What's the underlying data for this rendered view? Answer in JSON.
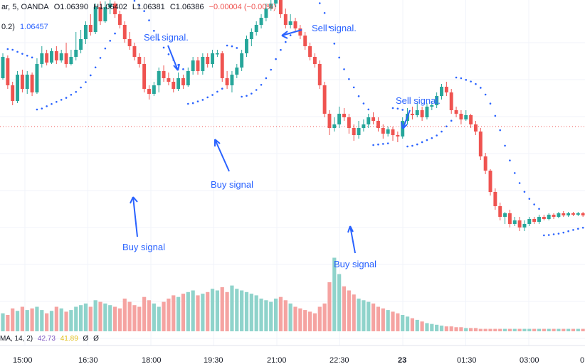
{
  "header": {
    "symbol_fragment": "ar, 5, OANDA",
    "open": "O1.06390",
    "high": "H1.06402",
    "low": "L1.06381",
    "close": "C1.06386",
    "change": "−0.00004 (−0.00%)",
    "change_color": "#ef5350"
  },
  "indicator": {
    "label": "0.2)",
    "value": "1.06457",
    "value_color": "#2962ff"
  },
  "annotations": [
    {
      "id": "sell-1",
      "text": "Sell signal."
    },
    {
      "id": "sell-2",
      "text": "Sell signal."
    },
    {
      "id": "sell-3",
      "text": "Sell signal."
    },
    {
      "id": "buy-1",
      "text": "Buy signal"
    },
    {
      "id": "buy-2",
      "text": "Buy signal"
    },
    {
      "id": "buy-3",
      "text": "Buy signal"
    }
  ],
  "time_axis": [
    "15:00",
    "16:30",
    "18:00",
    "19:30",
    "21:00",
    "22:30",
    "23",
    "01:30",
    "03:00",
    "0"
  ],
  "oscillator": {
    "label": "MA, 14, 2)",
    "value1": "42.73",
    "value1_color": "#7e57c2",
    "value2": "41.89",
    "value2_color": "#f5d322",
    "v3": "Ø",
    "v4": "Ø"
  },
  "colors": {
    "up": "#26a69a",
    "down": "#ef5350",
    "vol_up": "#8fd3cb",
    "vol_down": "#f5a3a1",
    "sar": "#2962ff",
    "grid": "#f0f3fa",
    "price_line": "#ef5350"
  },
  "chart_data": {
    "type": "candlestick",
    "candles_ohlc": [
      [
        150,
        180,
        148,
        185
      ],
      [
        178,
        140,
        135,
        182
      ],
      [
        140,
        118,
        112,
        145
      ],
      [
        118,
        155,
        115,
        160
      ],
      [
        155,
        135,
        130,
        162
      ],
      [
        135,
        155,
        128,
        160
      ],
      [
        155,
        130,
        125,
        158
      ],
      [
        130,
        170,
        128,
        178
      ],
      [
        170,
        185,
        165,
        195
      ],
      [
        185,
        172,
        168,
        190
      ],
      [
        172,
        188,
        170,
        192
      ],
      [
        188,
        175,
        170,
        195
      ],
      [
        175,
        185,
        172,
        190
      ],
      [
        185,
        170,
        165,
        200
      ],
      [
        170,
        180,
        168,
        190
      ],
      [
        180,
        190,
        175,
        215
      ],
      [
        190,
        205,
        185,
        218
      ],
      [
        205,
        225,
        198,
        230
      ],
      [
        225,
        215,
        210,
        240
      ],
      [
        215,
        250,
        212,
        255
      ],
      [
        250,
        230,
        225,
        258
      ],
      [
        230,
        250,
        228,
        258
      ],
      [
        250,
        255,
        240,
        260
      ],
      [
        255,
        240,
        235,
        258
      ],
      [
        240,
        225,
        220,
        245
      ],
      [
        225,
        205,
        200,
        230
      ],
      [
        205,
        195,
        190,
        215
      ],
      [
        195,
        180,
        175,
        200
      ],
      [
        180,
        170,
        165,
        185
      ],
      [
        170,
        135,
        130,
        180
      ],
      [
        135,
        128,
        120,
        140
      ],
      [
        128,
        140,
        125,
        145
      ],
      [
        140,
        160,
        130,
        165
      ],
      [
        160,
        150,
        145,
        168
      ],
      [
        150,
        145,
        140,
        158
      ],
      [
        145,
        135,
        130,
        150
      ],
      [
        135,
        150,
        132,
        158
      ],
      [
        150,
        140,
        135,
        155
      ],
      [
        140,
        160,
        138,
        165
      ],
      [
        160,
        175,
        155,
        180
      ],
      [
        175,
        160,
        155,
        180
      ],
      [
        160,
        180,
        155,
        185
      ],
      [
        180,
        170,
        165,
        185
      ],
      [
        170,
        185,
        165,
        190
      ],
      [
        185,
        185,
        180,
        190
      ],
      [
        185,
        150,
        145,
        188
      ],
      [
        150,
        140,
        135,
        160
      ],
      [
        140,
        155,
        130,
        160
      ],
      [
        155,
        165,
        150,
        170
      ],
      [
        165,
        185,
        160,
        190
      ],
      [
        185,
        205,
        180,
        210
      ],
      [
        205,
        215,
        195,
        220
      ],
      [
        215,
        225,
        210,
        230
      ],
      [
        225,
        235,
        220,
        240
      ],
      [
        235,
        248,
        230,
        255
      ],
      [
        248,
        255,
        245,
        275
      ],
      [
        255,
        260,
        250,
        262
      ],
      [
        260,
        240,
        235,
        265
      ],
      [
        240,
        225,
        220,
        248
      ],
      [
        225,
        230,
        220,
        240
      ],
      [
        230,
        220,
        215,
        235
      ],
      [
        220,
        210,
        205,
        225
      ],
      [
        210,
        195,
        190,
        215
      ],
      [
        195,
        180,
        175,
        200
      ],
      [
        180,
        170,
        165,
        185
      ],
      [
        170,
        140,
        135,
        175
      ],
      [
        140,
        100,
        95,
        145
      ],
      [
        100,
        80,
        70,
        105
      ],
      [
        80,
        85,
        75,
        95
      ],
      [
        85,
        100,
        80,
        110
      ],
      [
        100,
        95,
        90,
        108
      ],
      [
        95,
        80,
        72,
        100
      ],
      [
        80,
        70,
        62,
        85
      ],
      [
        70,
        80,
        65,
        90
      ],
      [
        80,
        85,
        75,
        92
      ],
      [
        85,
        95,
        80,
        100
      ],
      [
        95,
        90,
        85,
        102
      ],
      [
        90,
        80,
        75,
        95
      ],
      [
        80,
        72,
        65,
        85
      ],
      [
        72,
        78,
        68,
        82
      ],
      [
        78,
        70,
        62,
        82
      ],
      [
        70,
        68,
        60,
        75
      ],
      [
        68,
        90,
        65,
        95
      ],
      [
        90,
        100,
        85,
        108
      ],
      [
        100,
        98,
        92,
        110
      ],
      [
        98,
        105,
        95,
        115
      ],
      [
        105,
        95,
        90,
        110
      ],
      [
        95,
        110,
        92,
        115
      ],
      [
        110,
        112,
        105,
        118
      ],
      [
        112,
        125,
        108,
        130
      ],
      [
        125,
        138,
        120,
        142
      ],
      [
        138,
        130,
        125,
        145
      ],
      [
        130,
        105,
        100,
        135
      ],
      [
        105,
        100,
        95,
        110
      ],
      [
        100,
        92,
        85,
        105
      ],
      [
        92,
        98,
        90,
        105
      ],
      [
        98,
        85,
        80,
        100
      ],
      [
        85,
        75,
        70,
        90
      ],
      [
        75,
        40,
        35,
        80
      ],
      [
        40,
        20,
        15,
        45
      ],
      [
        20,
        -10,
        -15,
        22
      ],
      [
        -10,
        -30,
        -35,
        -5
      ],
      [
        -30,
        -45,
        -50,
        -25
      ],
      [
        -45,
        -40,
        -55,
        -38
      ],
      [
        -40,
        -55,
        -60,
        -35
      ],
      [
        -55,
        -50,
        -58,
        -45
      ],
      [
        -50,
        -60,
        -65,
        -45
      ],
      [
        -60,
        -55,
        -65,
        -50
      ],
      [
        -55,
        -48,
        -58,
        -45
      ],
      [
        -48,
        -52,
        -55,
        -45
      ],
      [
        -52,
        -45,
        -55,
        -42
      ],
      [
        -45,
        -48,
        -50,
        -42
      ],
      [
        -48,
        -42,
        -50,
        -40
      ],
      [
        -42,
        -45,
        -48,
        -40
      ],
      [
        -45,
        -40,
        -47,
        -38
      ],
      [
        -40,
        -43,
        -45,
        -37
      ],
      [
        -43,
        -40,
        -45,
        -38
      ],
      [
        -40,
        -42,
        -44,
        -38
      ],
      [
        -42,
        -40,
        -44,
        -38
      ],
      [
        -40,
        -43,
        -45,
        -38
      ]
    ],
    "volume": [
      22,
      20,
      28,
      25,
      30,
      26,
      28,
      30,
      26,
      22,
      25,
      30,
      28,
      24,
      26,
      30,
      32,
      34,
      30,
      38,
      36,
      34,
      32,
      30,
      28,
      40,
      36,
      32,
      30,
      42,
      38,
      34,
      30,
      36,
      40,
      44,
      42,
      46,
      48,
      50,
      44,
      46,
      48,
      52,
      50,
      54,
      48,
      56,
      52,
      50,
      48,
      46,
      44,
      40,
      38,
      36,
      40,
      42,
      38,
      34,
      30,
      28,
      26,
      24,
      22,
      30,
      34,
      60,
      90,
      70,
      55,
      50,
      45,
      40,
      38,
      36,
      34,
      30,
      28,
      26,
      24,
      22,
      20,
      18,
      16,
      14,
      12,
      10,
      9,
      8,
      7,
      6,
      6,
      5,
      5,
      4,
      4,
      4,
      3,
      3,
      3,
      3,
      3,
      3,
      3,
      3,
      3,
      3,
      3,
      3,
      3,
      3,
      3,
      3,
      3,
      3,
      3,
      3,
      3,
      3
    ]
  }
}
